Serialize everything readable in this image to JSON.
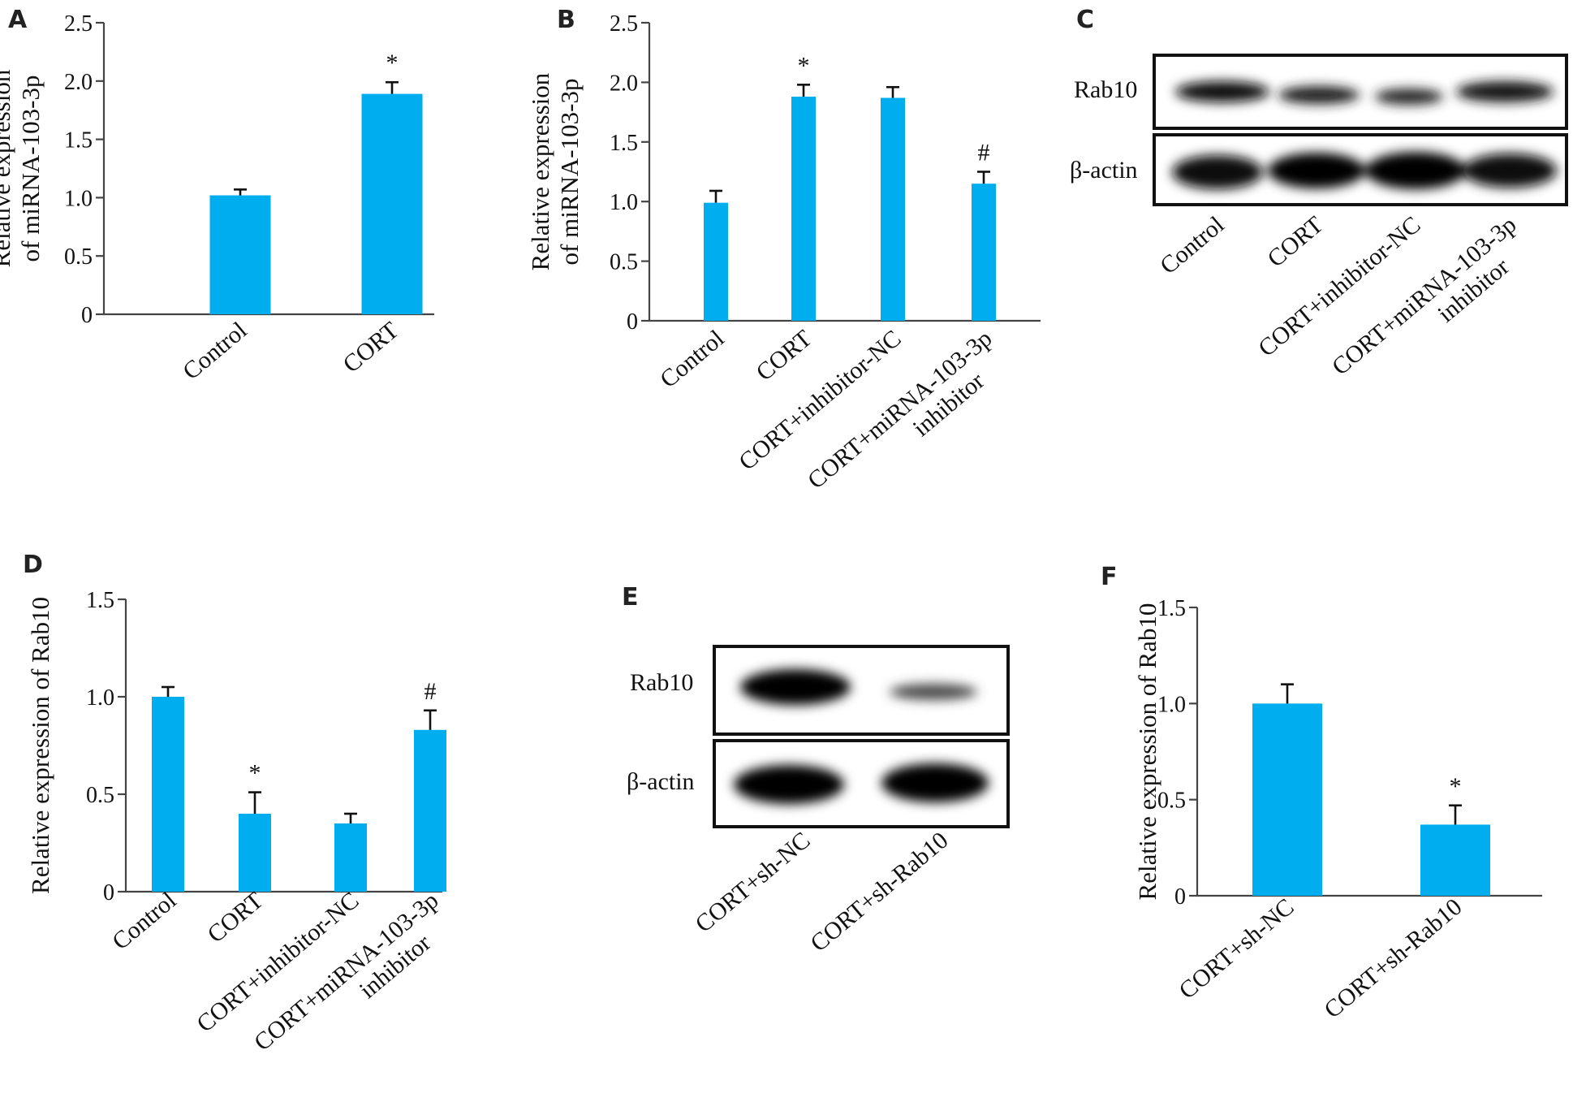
{
  "panels": {
    "A": "A",
    "B": "B",
    "C": "C",
    "D": "D",
    "E": "E",
    "F": "F"
  },
  "chart_data": [
    {
      "id": "A",
      "type": "bar",
      "ylabel": [
        "Relative expression",
        "of miRNA-103-3p"
      ],
      "ylim": [
        0,
        2.5
      ],
      "yticks": [
        0,
        0.5,
        1.0,
        1.5,
        2.0,
        2.5
      ],
      "yticklabels": [
        "0",
        "0.5",
        "1.0",
        "1.5",
        "2.0",
        "2.5"
      ],
      "categories": [
        [
          "Control"
        ],
        [
          "CORT"
        ]
      ],
      "values": [
        1.02,
        1.89
      ],
      "errors": [
        0.05,
        0.1
      ],
      "marks": [
        "",
        "*"
      ],
      "bar_color": "#00aeef"
    },
    {
      "id": "B",
      "type": "bar",
      "ylabel": [
        "Relative expression",
        "of miRNA-103-3p"
      ],
      "ylim": [
        0,
        2.5
      ],
      "yticks": [
        0,
        0.5,
        1.0,
        1.5,
        2.0,
        2.5
      ],
      "yticklabels": [
        "0",
        "0.5",
        "1.0",
        "1.5",
        "2.0",
        "2.5"
      ],
      "categories": [
        [
          "Control"
        ],
        [
          "CORT"
        ],
        [
          "CORT+inhibitor-NC"
        ],
        [
          "CORT+miRNA-103-3p",
          "inhibitor"
        ]
      ],
      "values": [
        0.99,
        1.88,
        1.87,
        1.15
      ],
      "errors": [
        0.1,
        0.1,
        0.09,
        0.1
      ],
      "marks": [
        "",
        "*",
        "",
        "#"
      ],
      "bar_color": "#00aeef"
    },
    {
      "id": "D",
      "type": "bar",
      "ylabel": [
        "Relative expression of Rab10"
      ],
      "ylim": [
        0,
        1.5
      ],
      "yticks": [
        0,
        0.5,
        1.0,
        1.5
      ],
      "yticklabels": [
        "0",
        "0.5",
        "1.0",
        "1.5"
      ],
      "categories": [
        [
          "Control"
        ],
        [
          "CORT"
        ],
        [
          "CORT+inhibitor-NC"
        ],
        [
          "CORT+miRNA-103-3p",
          "inhibitor"
        ]
      ],
      "values": [
        1.0,
        0.4,
        0.35,
        0.83
      ],
      "errors": [
        0.05,
        0.11,
        0.05,
        0.1
      ],
      "marks": [
        "",
        "*",
        "",
        "#"
      ],
      "bar_color": "#00aeef"
    },
    {
      "id": "F",
      "type": "bar",
      "ylabel": [
        "Relative expression of Rab10"
      ],
      "ylim": [
        0,
        1.5
      ],
      "yticks": [
        0,
        0.5,
        1.0,
        1.5
      ],
      "yticklabels": [
        "0",
        "0.5",
        "1.0",
        "1.5"
      ],
      "categories": [
        [
          "CORT+sh-NC"
        ],
        [
          "CORT+sh-Rab10"
        ]
      ],
      "values": [
        1.0,
        0.37
      ],
      "errors": [
        0.1,
        0.1
      ],
      "marks": [
        "",
        "*"
      ],
      "bar_color": "#00aeef"
    }
  ],
  "blots": {
    "C": {
      "rows": [
        "Rab10",
        "β-actin"
      ],
      "lanes": [
        [
          "Control"
        ],
        [
          "CORT"
        ],
        [
          "CORT+inhibitor-NC"
        ],
        [
          "CORT+miRNA-103-3p",
          "inhibitor"
        ]
      ]
    },
    "E": {
      "rows": [
        "Rab10",
        "β-actin"
      ],
      "lanes": [
        [
          "CORT+sh-NC"
        ],
        [
          "CORT+sh-Rab10"
        ]
      ]
    }
  }
}
